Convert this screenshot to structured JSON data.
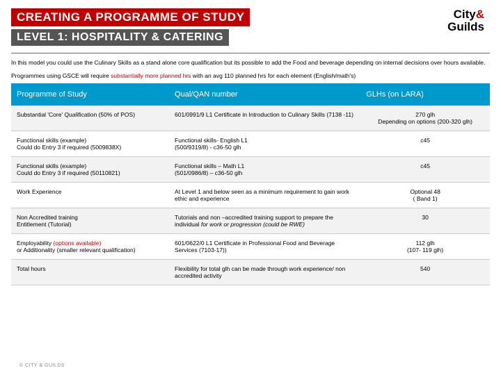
{
  "header": {
    "title": "CREATING A PROGRAMME OF STUDY",
    "subtitle": "LEVEL 1: HOSPITALITY & CATERING",
    "logo_line1": "City",
    "logo_amp": "&",
    "logo_line2": "Guilds"
  },
  "intro": {
    "p1": "In this model you could use the Culinary Skills as a stand alone core qualification but its possible to add the Food and beverage depending on internal decisions over hours available.",
    "p2a": "Programmes using GSCE will require ",
    "p2b": "substantially more planned hrs",
    "p2c": " with an avg 110 planned hrs for each element (English/math's)"
  },
  "table": {
    "headers": [
      "Programme of Study",
      "Qual/QAN number",
      "GLHs (on LARA)"
    ],
    "rows": [
      {
        "c1": "Substantial 'Core' Qualification (50% of POS)",
        "c2": "601/0991/9 L1 Certificate in Introduction to Culinary Skills (7138 -11)",
        "c3a": "270 glh",
        "c3b": "Depending on options (200-320 glh)"
      },
      {
        "c1a": "Functional skills (example)",
        "c1b": "Could do Entry 3 if required (5009838X)",
        "c2a": "Functional skills- English L1",
        "c2b": "(500/9319/8) - c36-50 glh",
        "c3": "c45"
      },
      {
        "c1a": "Functional skills (example)",
        "c1b": "Could do Entry 3 if required  (50110821)",
        "c2a": "Functional skills –  Math L1",
        "c2b": "(501/0986/8) – c36-50 glh",
        "c3": "c45"
      },
      {
        "c1": "Work Experience",
        "c2": "At Level 1 and below seen as a minimum requirement to gain work ethic and experience",
        "c3a": "Optional 48",
        "c3b": "( Band 1)"
      },
      {
        "c1a": "Non Accredited training",
        "c1b": "Entitlement (Tutorial)",
        "c2a": "Tutorials and non –accredited training support  to prepare the individual ",
        "c2b": "for work or progression (could be RWE)",
        "c3": "30"
      },
      {
        "c1a": "Employability ",
        "c1b": "(options available)",
        "c1c": "or Additionality (smaller relevant qualification)",
        "c2": "601/0622/0 L1 Certificate in Professional Food and Beverage Services (7103-17))",
        "c3a": "112 glh",
        "c3b": "(107- 119 glh)"
      },
      {
        "c1": "Total hours",
        "c2": "Flexibility for total glh can be made through work experience/ non accredited activity",
        "c3": "540"
      }
    ]
  },
  "footer": "© CITY & GUILDS",
  "colors": {
    "red": "#c00000",
    "grey": "#555555",
    "header_blue": "#0099cc",
    "row_alt": "#f2f2f2"
  }
}
